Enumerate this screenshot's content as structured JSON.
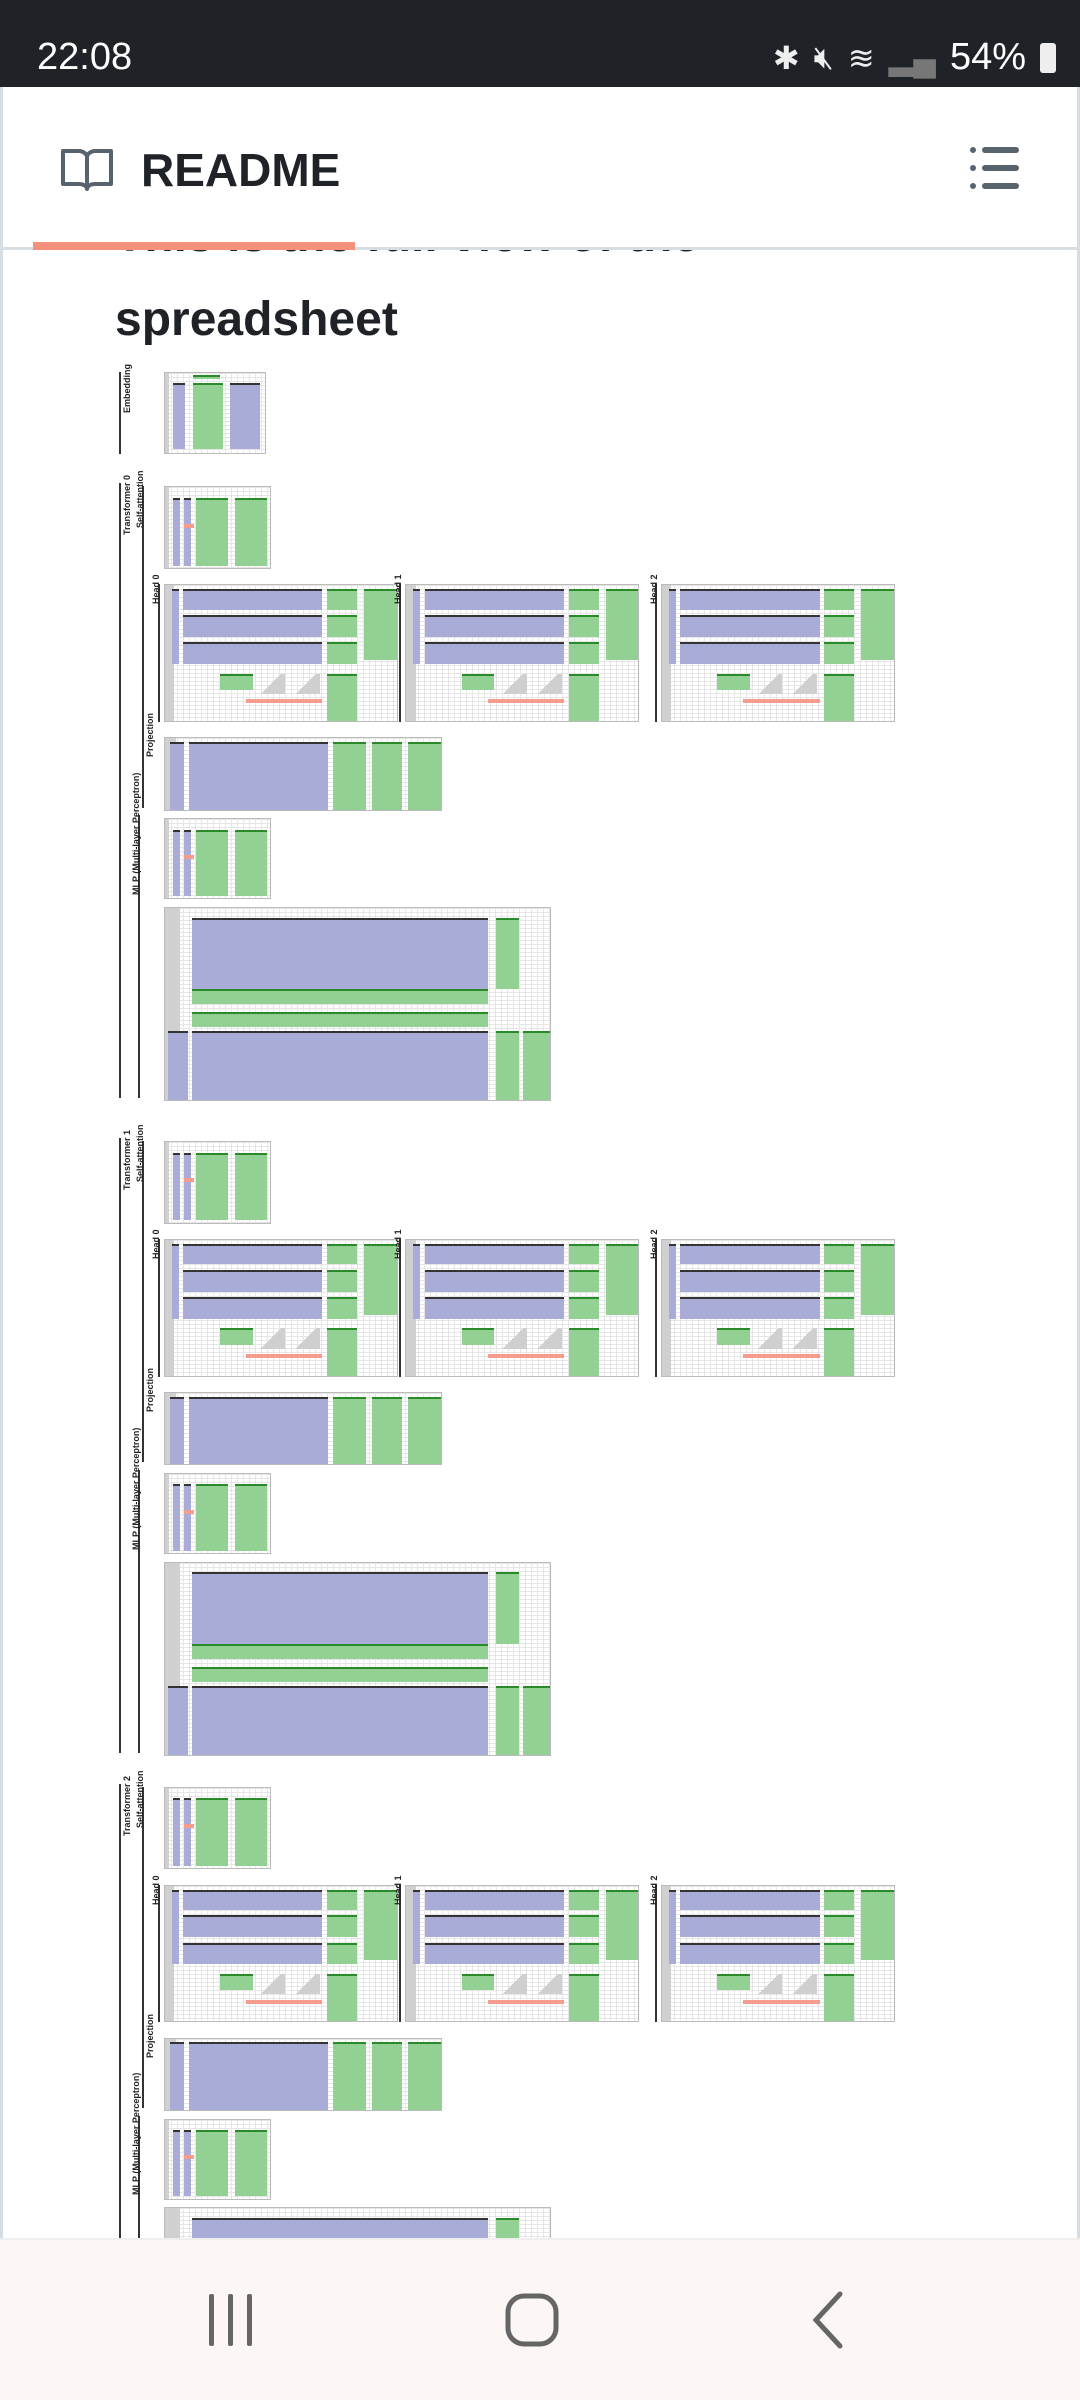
{
  "status_bar": {
    "time": "22:08",
    "battery": "54%",
    "icons": [
      "bluetooth-icon",
      "mute-icon",
      "wifi-icon",
      "signal-icon",
      "battery-icon"
    ]
  },
  "header": {
    "title": "README",
    "icon": "book-icon",
    "menu_icon": "list-icon"
  },
  "content": {
    "heading_line1": "This is the full view of the",
    "heading_line2": "spreadsheet",
    "spreadsheet": {
      "embedding_label": "Embedding",
      "transformers": [
        {
          "label": "Transformer 0",
          "self_attention": "Self-attention",
          "heads": [
            "Head 0",
            "Head 1",
            "Head 2"
          ],
          "projection": "Projection",
          "mlp": "MLP (Multi-layer Perceptron)"
        },
        {
          "label": "Transformer 1",
          "self_attention": "Self-attention",
          "heads": [
            "Head 0",
            "Head 1",
            "Head 2"
          ],
          "projection": "Projection",
          "mlp": "MLP (Multi-layer Perceptron)"
        },
        {
          "label": "Transformer 2",
          "self_attention": "Self-attention",
          "heads": [
            "Head 0",
            "Head 1",
            "Head 2"
          ],
          "projection": "Projection",
          "mlp": "MLP (Multi-layer Perceptron)"
        }
      ]
    }
  },
  "navbar": {
    "recents": "recents-icon",
    "home": "home-icon",
    "back": "back-icon"
  },
  "colors": {
    "accent": "#f5907c",
    "status_bar": "#1f2328",
    "matrix_purple": "#aaacd8",
    "matrix_green": "#93d093"
  }
}
